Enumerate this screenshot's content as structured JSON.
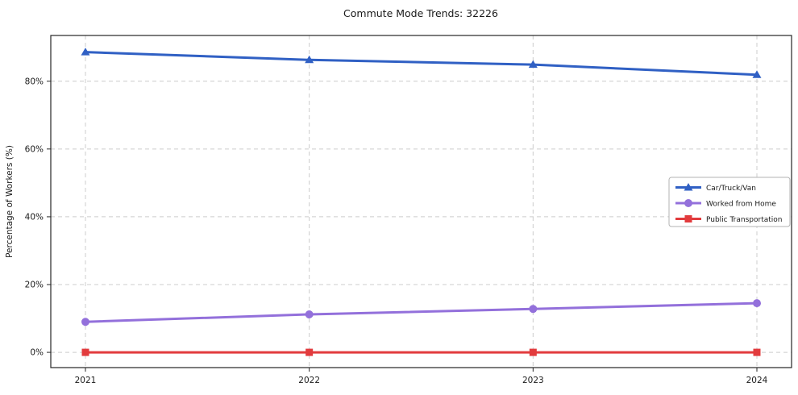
{
  "chart_data": {
    "type": "line",
    "title": "Commute Mode Trends: 32226",
    "xlabel": "",
    "ylabel": "Percentage of Workers (%)",
    "categories": [
      "2021",
      "2022",
      "2023",
      "2024"
    ],
    "series": [
      {
        "name": "Car/Truck/Van",
        "marker": "triangle",
        "color": "#3060c4",
        "values": [
          88.6,
          86.3,
          84.9,
          81.9
        ]
      },
      {
        "name": "Worked from Home",
        "marker": "circle",
        "color": "#9370db",
        "values": [
          9.0,
          11.2,
          12.8,
          14.5
        ]
      },
      {
        "name": "Public Transportation",
        "marker": "square",
        "color": "#e23b3d",
        "values": [
          0.0,
          0.0,
          0.0,
          0.0
        ]
      }
    ],
    "yticks": [
      0,
      20,
      40,
      60,
      80
    ],
    "ytick_labels": [
      "0%",
      "20%",
      "40%",
      "60%",
      "80%"
    ],
    "ylim": [
      -4.5,
      93.5
    ],
    "grid": true,
    "grid_style": "dashed",
    "legend_position": "center-right"
  },
  "colors": {
    "background": "#ffffff",
    "grid": "#cccccc",
    "axis": "#262626",
    "text": "#1a1a1a",
    "legend_border": "#b3b3b3",
    "legend_background": "#ffffff"
  }
}
